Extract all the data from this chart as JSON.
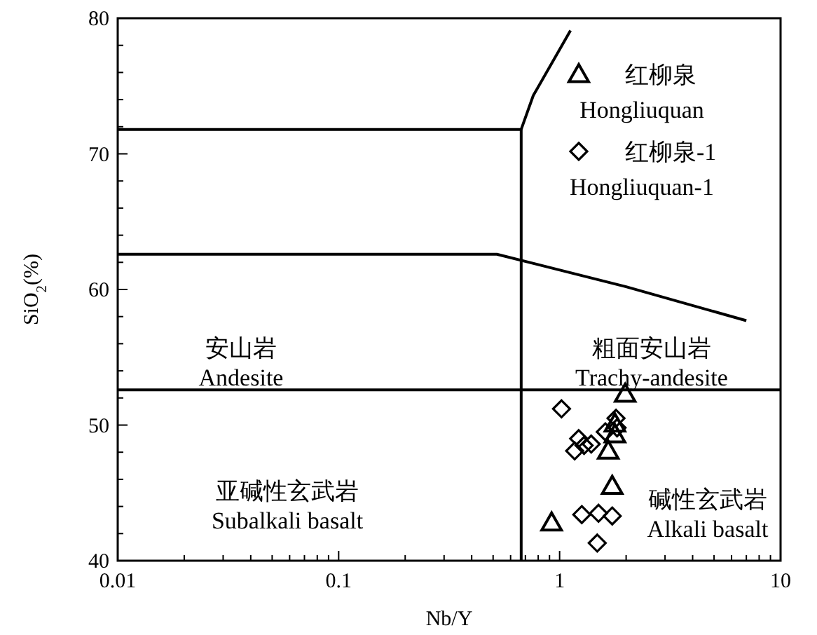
{
  "chart_data": {
    "type": "scatter",
    "xlabel": "Nb/Y",
    "ylabel": "SiO$_{2}$(%)",
    "log": "x",
    "xlim": [
      0.01,
      10
    ],
    "xticks": [
      0.01,
      0.1,
      1,
      10
    ],
    "ylim": [
      40,
      80
    ],
    "yticks": [
      40,
      50,
      60,
      70,
      80
    ],
    "legend": "top right",
    "grid": false,
    "annotations": [
      "安山岩\nAndesite",
      "粗面安山岩\nTrachy-andesite",
      "亚碱性玄武岩\nSubalkali basalt",
      "碱性玄武岩\nAlkali basalt"
    ],
    "series": [
      {
        "name": "红柳泉\nHongliuquan",
        "color": "#000000",
        "marker": "triangle",
        "x": [
          1.98,
          1.78,
          1.78,
          1.66,
          1.73,
          0.92
        ],
        "values": [
          52.3,
          50.1,
          49.3,
          48.1,
          45.5,
          42.8
        ]
      },
      {
        "name": "红柳泉-1\nHongliuquan-1",
        "color": "#000000",
        "marker": "diamond",
        "x": [
          1.02,
          1.22,
          1.17,
          1.29,
          1.39,
          1.61,
          1.82,
          1.8,
          1.26,
          1.5,
          1.73,
          1.48
        ],
        "values": [
          51.2,
          49.0,
          48.1,
          48.5,
          48.6,
          49.5,
          49.8,
          50.5,
          43.4,
          43.5,
          43.3,
          41.3
        ]
      },
      {
        "type": "line",
        "color": "#000000",
        "marker": "none",
        "x": [
          0.01,
          0.67,
          0.76,
          1.12
        ],
        "values": [
          71.8,
          71.8,
          74.3,
          79.1
        ]
      },
      {
        "type": "line",
        "color": "#000000",
        "marker": "none",
        "x": [
          0.67,
          0.67
        ],
        "values": [
          71.8,
          40
        ]
      },
      {
        "type": "line",
        "color": "#000000",
        "marker": "none",
        "x": [
          0.01,
          0.52,
          2.0,
          7.0
        ],
        "values": [
          62.6,
          62.6,
          60.2,
          57.7
        ]
      },
      {
        "type": "line",
        "color": "#000000",
        "marker": "none",
        "x": [
          0.01,
          10
        ],
        "values": [
          52.6,
          52.6
        ]
      }
    ]
  }
}
